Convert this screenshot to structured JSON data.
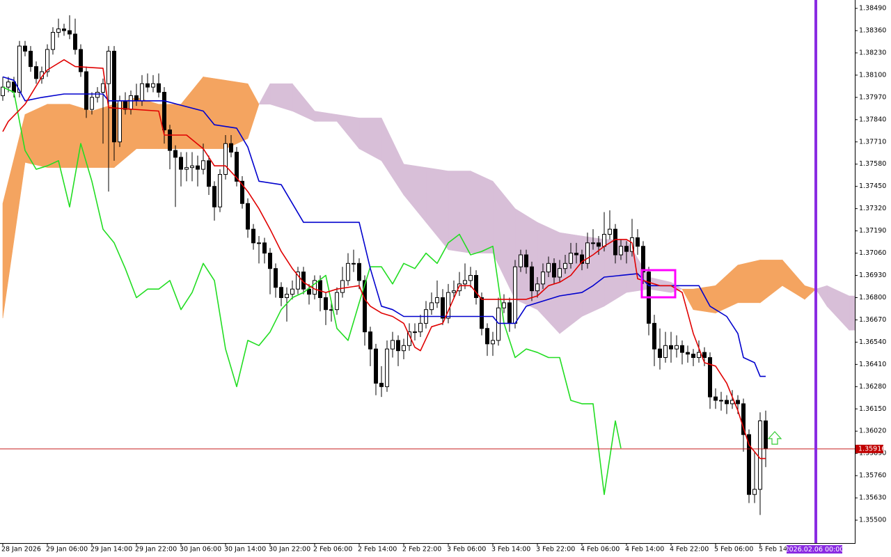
{
  "chart_data": {
    "type": "candlestick",
    "xlim": [
      -0.5,
      153
    ],
    "ylim": [
      1.35366,
      1.38539
    ],
    "grid": false,
    "yticks": [
      {
        "value": 1.3849,
        "label": "1.38490"
      },
      {
        "value": 1.3836,
        "label": "1.38360"
      },
      {
        "value": 1.3823,
        "label": "1.38230"
      },
      {
        "value": 1.381,
        "label": "1.38100"
      },
      {
        "value": 1.3797,
        "label": "1.37970"
      },
      {
        "value": 1.3784,
        "label": "1.37840"
      },
      {
        "value": 1.3771,
        "label": "1.37710"
      },
      {
        "value": 1.3758,
        "label": "1.37580"
      },
      {
        "value": 1.3745,
        "label": "1.37450"
      },
      {
        "value": 1.3732,
        "label": "1.37320"
      },
      {
        "value": 1.3719,
        "label": "1.37190"
      },
      {
        "value": 1.3706,
        "label": "1.37060"
      },
      {
        "value": 1.3693,
        "label": "1.36930"
      },
      {
        "value": 1.368,
        "label": "1.36800"
      },
      {
        "value": 1.3667,
        "label": "1.36670"
      },
      {
        "value": 1.3654,
        "label": "1.36540"
      },
      {
        "value": 1.3641,
        "label": "1.36410"
      },
      {
        "value": 1.3628,
        "label": "1.36280"
      },
      {
        "value": 1.3615,
        "label": "1.36150"
      },
      {
        "value": 1.3602,
        "label": "1.36020"
      },
      {
        "value": 1.3589,
        "label": "1.35890"
      },
      {
        "value": 1.3576,
        "label": "1.35760"
      },
      {
        "value": 1.3563,
        "label": "1.35630"
      },
      {
        "value": 1.355,
        "label": "1.35500"
      }
    ],
    "xticks": [
      {
        "value": 0,
        "label": "28 Jan 2026"
      },
      {
        "value": 8,
        "label": "29 Jan 06:00"
      },
      {
        "value": 16,
        "label": "29 Jan 14:00"
      },
      {
        "value": 24,
        "label": "29 Jan 22:00"
      },
      {
        "value": 32,
        "label": "30 Jan 06:00"
      },
      {
        "value": 40,
        "label": "30 Jan 14:00"
      },
      {
        "value": 48,
        "label": "30 Jan 22:00"
      },
      {
        "value": 56,
        "label": "2 Feb 06:00"
      },
      {
        "value": 64,
        "label": "2 Feb 14:00"
      },
      {
        "value": 72,
        "label": "2 Feb 22:00"
      },
      {
        "value": 80,
        "label": "3 Feb 06:00"
      },
      {
        "value": 88,
        "label": "3 Feb 14:00"
      },
      {
        "value": 96,
        "label": "3 Feb 22:00"
      },
      {
        "value": 104,
        "label": "4 Feb 06:00"
      },
      {
        "value": 112,
        "label": "4 Feb 14:00"
      },
      {
        "value": 120,
        "label": "4 Feb 22:00"
      },
      {
        "value": 128,
        "label": "5 Feb 06:00"
      },
      {
        "value": 136,
        "label": "5 Feb 14:00"
      }
    ],
    "candles": {
      "up_color": "#ffffff",
      "down_color": "#000000",
      "outline_color": "#000000",
      "open": [
        1.3798,
        1.3803,
        1.3806,
        1.38,
        1.3827,
        1.3824,
        1.3815,
        1.3808,
        1.3812,
        1.3825,
        1.3835,
        1.3837,
        1.3836,
        1.3834,
        1.3825,
        1.3812,
        1.379,
        1.3797,
        1.38,
        1.3805,
        1.3824,
        1.3771,
        1.3795,
        1.379,
        1.3798,
        1.3795,
        1.3805,
        1.3803,
        1.3805,
        1.38,
        1.3778,
        1.3766,
        1.3762,
        1.3755,
        1.3756,
        1.3757,
        1.3755,
        1.376,
        1.3745,
        1.3733,
        1.3752,
        1.377,
        1.3765,
        1.3748,
        1.3735,
        1.372,
        1.3712,
        1.3712,
        1.3706,
        1.3697,
        1.3686,
        1.368,
        1.3682,
        1.3685,
        1.3695,
        1.3685,
        1.3682,
        1.369,
        1.368,
        1.3673,
        1.3673,
        1.3683,
        1.369,
        1.37,
        1.37,
        1.369,
        1.366,
        1.365,
        1.363,
        1.3628,
        1.365,
        1.3655,
        1.3649,
        1.3652,
        1.366,
        1.366,
        1.3665,
        1.3673,
        1.3677,
        1.368,
        1.3668,
        1.3683,
        1.3684,
        1.3688,
        1.369,
        1.3693,
        1.368,
        1.3662,
        1.3653,
        1.3655,
        1.3674,
        1.3677,
        1.3665,
        1.3698,
        1.3705,
        1.3698,
        1.3684,
        1.3688,
        1.3695,
        1.37,
        1.3692,
        1.3697,
        1.37,
        1.3706,
        1.3705,
        1.37,
        1.3712,
        1.3712,
        1.371,
        1.3717,
        1.372,
        1.3705,
        1.371,
        1.3707,
        1.3715,
        1.371,
        1.3695,
        1.3665,
        1.365,
        1.3645,
        1.3652,
        1.365,
        1.3652,
        1.3648,
        1.3647,
        1.3645,
        1.3648,
        1.3645,
        1.3622,
        1.362,
        1.362,
        1.3618,
        1.362,
        1.3618,
        1.36,
        1.3565,
        1.3568,
        1.3608
      ],
      "high": [
        1.3809,
        1.3809,
        1.3809,
        1.383,
        1.383,
        1.3827,
        1.3818,
        1.3815,
        1.3828,
        1.3838,
        1.3843,
        1.384,
        1.3845,
        1.3843,
        1.3828,
        1.3815,
        1.38,
        1.3803,
        1.3808,
        1.3827,
        1.3827,
        1.3798,
        1.38,
        1.3801,
        1.3805,
        1.381,
        1.3811,
        1.381,
        1.3811,
        1.3803,
        1.3781,
        1.3769,
        1.3765,
        1.3765,
        1.3765,
        1.3763,
        1.377,
        1.3763,
        1.3748,
        1.3755,
        1.3775,
        1.3775,
        1.3768,
        1.3751,
        1.3738,
        1.3723,
        1.3716,
        1.3715,
        1.3709,
        1.37,
        1.3689,
        1.3686,
        1.369,
        1.3698,
        1.3698,
        1.3688,
        1.3693,
        1.3693,
        1.3683,
        1.3678,
        1.3686,
        1.3698,
        1.3706,
        1.3708,
        1.3703,
        1.3693,
        1.3663,
        1.3653,
        1.364,
        1.3655,
        1.366,
        1.3658,
        1.3656,
        1.3665,
        1.3665,
        1.367,
        1.3678,
        1.3683,
        1.369,
        1.3685,
        1.3688,
        1.369,
        1.3695,
        1.37,
        1.3698,
        1.3696,
        1.3683,
        1.3665,
        1.366,
        1.368,
        1.3682,
        1.368,
        1.3702,
        1.3708,
        1.3708,
        1.3701,
        1.3692,
        1.37,
        1.3704,
        1.3703,
        1.3702,
        1.3705,
        1.3712,
        1.3712,
        1.3708,
        1.3718,
        1.372,
        1.3716,
        1.373,
        1.3731,
        1.3723,
        1.3714,
        1.3713,
        1.3726,
        1.372,
        1.3713,
        1.3698,
        1.367,
        1.3662,
        1.366,
        1.366,
        1.3658,
        1.3655,
        1.3652,
        1.365,
        1.3655,
        1.3651,
        1.3648,
        1.3627,
        1.3625,
        1.3623,
        1.3626,
        1.3623,
        1.3621,
        1.3603,
        1.359,
        1.3613,
        1.3614
      ],
      "low": [
        1.3795,
        1.38,
        1.3797,
        1.3797,
        1.3821,
        1.3812,
        1.3805,
        1.3805,
        1.3809,
        1.3822,
        1.3832,
        1.3833,
        1.3831,
        1.3822,
        1.3809,
        1.3785,
        1.3787,
        1.3794,
        1.377,
        1.3742,
        1.376,
        1.3768,
        1.3787,
        1.3787,
        1.3792,
        1.3792,
        1.38,
        1.38,
        1.3797,
        1.377,
        1.3755,
        1.3733,
        1.3745,
        1.3748,
        1.3748,
        1.3745,
        1.3752,
        1.374,
        1.3725,
        1.373,
        1.3749,
        1.3762,
        1.3745,
        1.3732,
        1.3715,
        1.3708,
        1.37,
        1.37,
        1.3682,
        1.368,
        1.3675,
        1.3666,
        1.3679,
        1.3682,
        1.3682,
        1.3676,
        1.3679,
        1.3672,
        1.3664,
        1.3666,
        1.367,
        1.368,
        1.3687,
        1.3695,
        1.3685,
        1.3652,
        1.364,
        1.3623,
        1.3622,
        1.3625,
        1.3645,
        1.364,
        1.3644,
        1.3649,
        1.3655,
        1.3657,
        1.3662,
        1.367,
        1.3674,
        1.3664,
        1.3665,
        1.368,
        1.3681,
        1.3685,
        1.3686,
        1.3676,
        1.3658,
        1.3646,
        1.3646,
        1.3652,
        1.3671,
        1.366,
        1.3662,
        1.3695,
        1.3694,
        1.3678,
        1.368,
        1.3685,
        1.3692,
        1.3688,
        1.3689,
        1.3694,
        1.3697,
        1.37,
        1.3696,
        1.3697,
        1.3708,
        1.3705,
        1.3707,
        1.3714,
        1.37,
        1.3702,
        1.37,
        1.3704,
        1.3705,
        1.3688,
        1.3658,
        1.364,
        1.3638,
        1.3642,
        1.3642,
        1.3645,
        1.3641,
        1.3642,
        1.364,
        1.3642,
        1.364,
        1.3615,
        1.3615,
        1.3614,
        1.3612,
        1.3615,
        1.3612,
        1.359,
        1.356,
        1.356,
        1.3553,
        1.3581
      ],
      "close": [
        1.3803,
        1.3806,
        1.38,
        1.3827,
        1.3824,
        1.3815,
        1.3808,
        1.3812,
        1.3825,
        1.3835,
        1.3837,
        1.3836,
        1.3834,
        1.3825,
        1.3812,
        1.379,
        1.3797,
        1.38,
        1.3805,
        1.3824,
        1.3771,
        1.3795,
        1.379,
        1.3798,
        1.3795,
        1.3805,
        1.3803,
        1.3805,
        1.38,
        1.3778,
        1.3766,
        1.3762,
        1.3755,
        1.3756,
        1.3757,
        1.3755,
        1.376,
        1.3745,
        1.3733,
        1.3752,
        1.377,
        1.3765,
        1.3748,
        1.3735,
        1.372,
        1.3712,
        1.3712,
        1.3706,
        1.3697,
        1.3686,
        1.368,
        1.3682,
        1.3685,
        1.3695,
        1.3685,
        1.3682,
        1.369,
        1.368,
        1.3673,
        1.3673,
        1.3683,
        1.369,
        1.37,
        1.37,
        1.369,
        1.366,
        1.365,
        1.363,
        1.3628,
        1.365,
        1.3655,
        1.3649,
        1.3652,
        1.366,
        1.366,
        1.3665,
        1.3673,
        1.3677,
        1.368,
        1.3668,
        1.3683,
        1.3684,
        1.3688,
        1.369,
        1.3693,
        1.368,
        1.3662,
        1.3653,
        1.3655,
        1.3674,
        1.3677,
        1.3665,
        1.3698,
        1.3705,
        1.3698,
        1.3684,
        1.3688,
        1.3695,
        1.37,
        1.3692,
        1.3697,
        1.37,
        1.3706,
        1.3705,
        1.37,
        1.3712,
        1.3712,
        1.371,
        1.3717,
        1.372,
        1.3705,
        1.371,
        1.3707,
        1.3715,
        1.371,
        1.3695,
        1.3665,
        1.365,
        1.3645,
        1.3652,
        1.365,
        1.3652,
        1.3648,
        1.3647,
        1.3645,
        1.3648,
        1.3645,
        1.3622,
        1.362,
        1.362,
        1.3618,
        1.362,
        1.3618,
        1.36,
        1.3565,
        1.3568,
        1.3608,
        1.3592
      ]
    },
    "cloud": {
      "up_color": "#f4a460",
      "down_color": "#d8bfd8",
      "x": [
        0,
        4,
        8,
        12,
        16,
        20,
        24,
        28,
        32,
        36,
        40,
        44,
        46,
        48,
        52,
        56,
        60,
        64,
        68,
        72,
        76,
        80,
        84,
        88,
        92,
        96,
        100,
        104,
        108,
        112,
        116,
        120,
        122,
        124,
        128,
        132,
        136,
        140,
        144,
        146,
        148,
        152,
        153
      ],
      "span_a": [
        1.3735,
        1.3787,
        1.3793,
        1.3793,
        1.3789,
        1.3793,
        1.3797,
        1.3793,
        1.3793,
        1.3809,
        1.3807,
        1.3805,
        1.3793,
        1.3793,
        1.3789,
        1.3783,
        1.3783,
        1.3767,
        1.376,
        1.374,
        1.3724,
        1.3708,
        1.3706,
        1.3706,
        1.3679,
        1.3673,
        1.3659,
        1.3669,
        1.3675,
        1.3683,
        1.3685,
        1.3683,
        1.3685,
        1.3685,
        1.3687,
        1.3699,
        1.3702,
        1.3702,
        1.3687,
        1.3685,
        1.3675,
        1.3661,
        1.3661
      ],
      "span_b": [
        1.3668,
        1.3759,
        1.3756,
        1.3756,
        1.3756,
        1.3756,
        1.3767,
        1.3767,
        1.3767,
        1.3767,
        1.3767,
        1.3773,
        1.3793,
        1.3805,
        1.3805,
        1.3789,
        1.3787,
        1.3785,
        1.3785,
        1.3758,
        1.3756,
        1.3754,
        1.3754,
        1.3748,
        1.3732,
        1.3724,
        1.3718,
        1.3716,
        1.3714,
        1.3714,
        1.3692,
        1.3689,
        1.3685,
        1.3673,
        1.3671,
        1.3677,
        1.3677,
        1.3687,
        1.3679,
        1.3685,
        1.3687,
        1.3681,
        1.3681
      ]
    },
    "series": [
      {
        "color": "#22dd22",
        "x": [
          0,
          2,
          4,
          6,
          8,
          10,
          12,
          14,
          16,
          18,
          20,
          22,
          24,
          26,
          28,
          30,
          32,
          34,
          36,
          38,
          40,
          42,
          44,
          46,
          48,
          50,
          52,
          54,
          56,
          58,
          60,
          62,
          64,
          66,
          68,
          70,
          72,
          74,
          76,
          78,
          80,
          82,
          84,
          86,
          88,
          90,
          92,
          94,
          96,
          98,
          100,
          102,
          104,
          106,
          108,
          110,
          111
        ],
        "values": [
          1.3803,
          1.38,
          1.3766,
          1.3755,
          1.3757,
          1.376,
          1.3733,
          1.377,
          1.3748,
          1.372,
          1.3712,
          1.3697,
          1.368,
          1.3685,
          1.3685,
          1.369,
          1.3673,
          1.3683,
          1.37,
          1.369,
          1.365,
          1.3628,
          1.3655,
          1.3652,
          1.366,
          1.3673,
          1.368,
          1.3683,
          1.3688,
          1.3693,
          1.3662,
          1.3655,
          1.3677,
          1.3698,
          1.3698,
          1.3688,
          1.37,
          1.3697,
          1.3706,
          1.37,
          1.3712,
          1.3717,
          1.3705,
          1.3707,
          1.371,
          1.3665,
          1.3645,
          1.365,
          1.3648,
          1.3645,
          1.3645,
          1.362,
          1.3618,
          1.3618,
          1.3565,
          1.3608,
          1.3592
        ]
      },
      {
        "color": "#0000cd",
        "x": [
          0,
          2,
          4,
          7,
          11,
          18,
          19,
          29,
          36,
          38,
          42,
          44,
          46,
          50,
          54,
          64,
          66,
          68,
          70,
          72,
          88,
          89,
          92,
          94,
          96,
          100,
          104,
          106,
          108,
          114,
          116,
          125,
          127,
          130,
          132,
          133,
          135,
          136,
          137
        ],
        "values": [
          1.3809,
          1.3807,
          1.3795,
          1.3797,
          1.3799,
          1.3799,
          1.3795,
          1.3795,
          1.3789,
          1.3781,
          1.3779,
          1.3768,
          1.3748,
          1.3746,
          1.3724,
          1.3724,
          1.3697,
          1.3675,
          1.3673,
          1.3669,
          1.3669,
          1.3665,
          1.3665,
          1.3675,
          1.3677,
          1.3681,
          1.3683,
          1.3687,
          1.3692,
          1.3694,
          1.3687,
          1.3687,
          1.3675,
          1.3669,
          1.3659,
          1.3645,
          1.3642,
          1.3634,
          1.3634
        ]
      },
      {
        "color": "#e00000",
        "x": [
          0,
          1,
          4,
          7,
          8,
          11,
          13,
          18,
          19,
          28,
          29,
          33,
          36,
          38,
          40,
          42,
          44,
          46,
          48,
          50,
          52,
          54,
          56,
          58,
          60,
          64,
          65,
          66,
          68,
          70,
          72,
          74,
          75,
          77,
          79,
          82,
          84,
          86,
          94,
          96,
          98,
          100,
          102,
          104,
          106,
          108,
          110,
          112,
          113,
          114,
          116,
          118,
          120,
          122,
          124,
          126,
          128,
          130,
          132,
          134,
          136,
          137
        ],
        "values": [
          1.3777,
          1.3783,
          1.3793,
          1.3809,
          1.3813,
          1.3819,
          1.3815,
          1.3814,
          1.3791,
          1.3789,
          1.3775,
          1.3775,
          1.3767,
          1.3757,
          1.3757,
          1.375,
          1.3742,
          1.3732,
          1.372,
          1.3707,
          1.3697,
          1.3689,
          1.3685,
          1.3683,
          1.3685,
          1.3687,
          1.3679,
          1.3675,
          1.3671,
          1.3669,
          1.3665,
          1.3651,
          1.3649,
          1.3663,
          1.3665,
          1.3687,
          1.3687,
          1.3679,
          1.3679,
          1.3681,
          1.3687,
          1.3689,
          1.3693,
          1.3701,
          1.3705,
          1.371,
          1.3714,
          1.3714,
          1.3712,
          1.3691,
          1.3689,
          1.3687,
          1.3687,
          1.3683,
          1.3659,
          1.3642,
          1.364,
          1.363,
          1.3614,
          1.3594,
          1.3586,
          1.3586
        ]
      }
    ],
    "last_price": {
      "value": 1.35916,
      "color": "#c00000"
    },
    "vertical_line": {
      "x": 146,
      "label": "2026.02.06 00:00",
      "color": "#8a2be2"
    }
  }
}
